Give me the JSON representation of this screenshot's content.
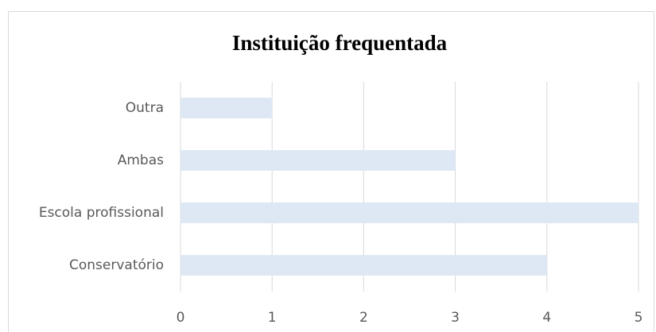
{
  "chart_data": {
    "type": "bar",
    "orientation": "horizontal",
    "title": "Instituição frequentada",
    "categories": [
      "Outra",
      "Ambas",
      "Escola profissional",
      "Conservatório"
    ],
    "values": [
      1,
      3,
      5,
      4
    ],
    "color": "#dee8f5",
    "xlim": [
      0,
      5
    ],
    "xticks": [
      0,
      1,
      2,
      3,
      4,
      5
    ],
    "grid": true
  }
}
